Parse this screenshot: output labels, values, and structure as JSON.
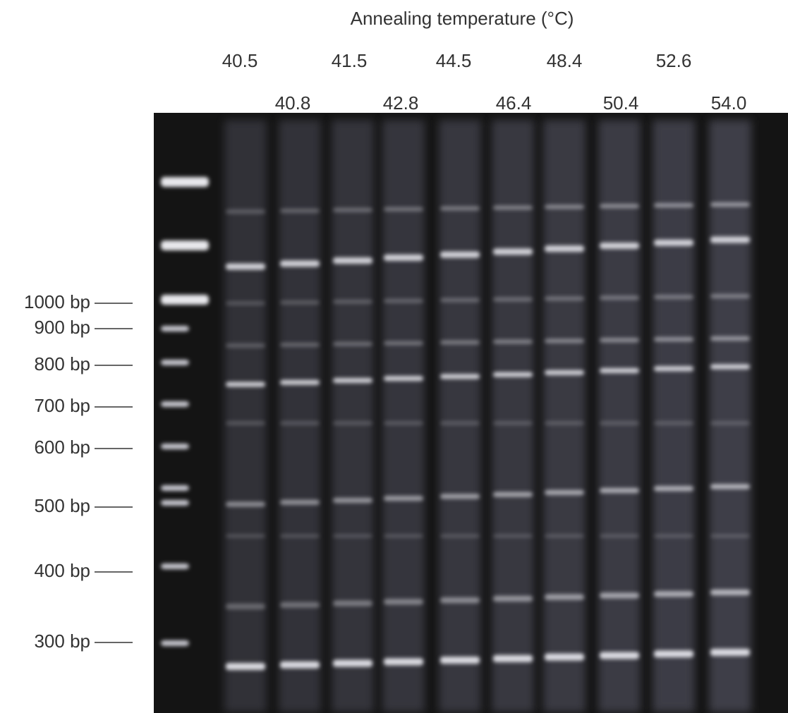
{
  "header": {
    "title": "Annealing temperature (°C)",
    "lanes_top": [
      "40.5",
      "41.5",
      "44.5",
      "48.4",
      "52.6"
    ],
    "lanes_bottom": [
      "40.8",
      "42.8",
      "46.4",
      "50.4",
      "54.0"
    ]
  },
  "markers": [
    "1000 bp",
    "900 bp",
    "800 bp",
    "700 bp",
    "600 bp",
    "500 bp",
    "400 bp",
    "300 bp"
  ]
}
